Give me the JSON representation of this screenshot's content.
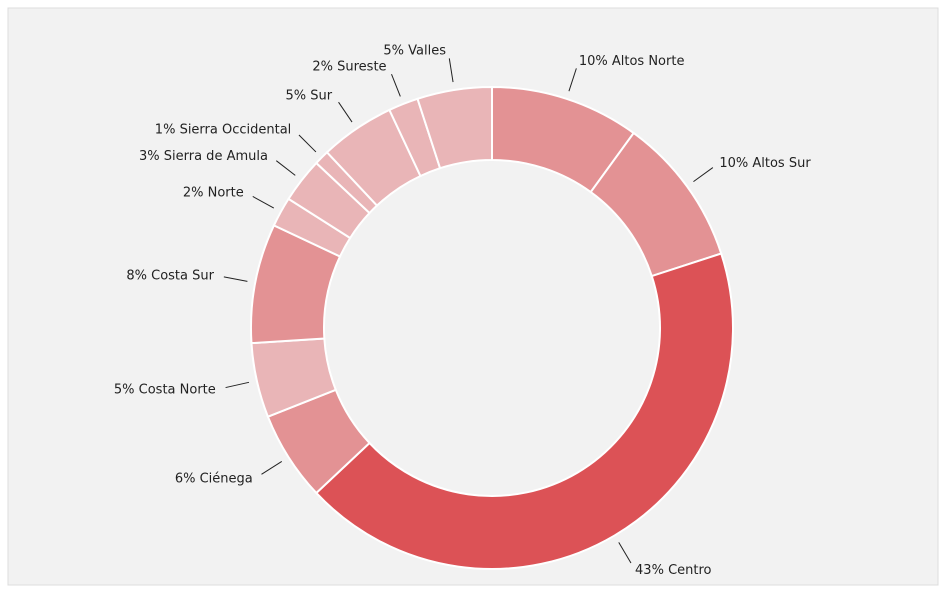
{
  "chart_data": {
    "type": "donut",
    "categories": [
      "Altos Norte",
      "Altos Sur",
      "Centro",
      "Ciénega",
      "Costa Norte",
      "Costa Sur",
      "Norte",
      "Sierra de Amula",
      "Sierra Occidental",
      "Sur",
      "Sureste",
      "Valles"
    ],
    "values": [
      10,
      10,
      43,
      6,
      5,
      8,
      2,
      3,
      1,
      5,
      2,
      5
    ],
    "value_labels": [
      "10%",
      "10%",
      "43%",
      "6%",
      "5%",
      "8%",
      "2%",
      "3%",
      "1%",
      "5%",
      "2%",
      "5%"
    ],
    "colors": [
      "#e39294",
      "#e39294",
      "#dc5256",
      "#e39294",
      "#e9b5b7",
      "#e39294",
      "#e9b5b7",
      "#e9b5b7",
      "#e9b5b7",
      "#e9b5b7",
      "#e9b5b7",
      "#e9b5b7"
    ]
  }
}
